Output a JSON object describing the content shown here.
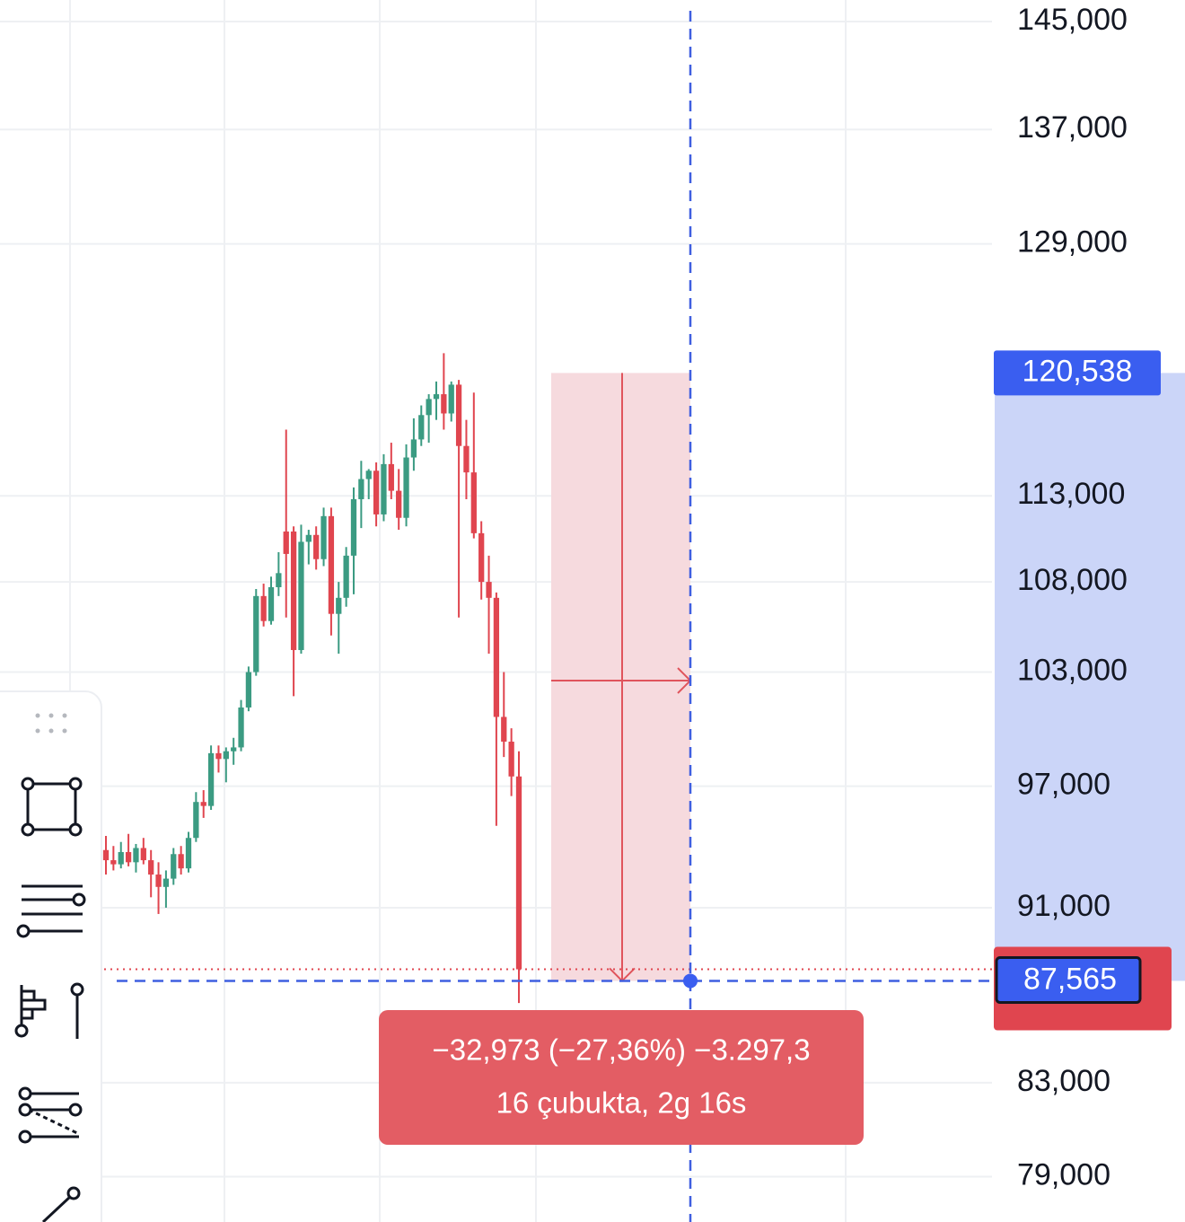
{
  "chart_data": {
    "type": "candlestick",
    "open": [
      93800,
      93300,
      93100,
      93700,
      93200,
      93900,
      93300,
      92600,
      92000,
      92400,
      93600,
      92900,
      94400,
      96200,
      96000,
      98700,
      98400,
      98800,
      99000,
      101100,
      103000,
      107200,
      105800,
      107700,
      110900,
      110900,
      104200,
      110300,
      110700,
      109300,
      111800,
      106200,
      107100,
      109500,
      112800,
      114000,
      114500,
      111900,
      114900,
      113300,
      111700,
      115300,
      116400,
      117900,
      118900,
      119200,
      118000,
      119800,
      116000,
      114400,
      110800,
      108000,
      107100,
      100600,
      99300,
      97500
    ],
    "high": [
      94500,
      94000,
      94200,
      94600,
      94100,
      94400,
      93800,
      93200,
      92800,
      93900,
      94000,
      94700,
      96700,
      96800,
      99100,
      99100,
      99000,
      99500,
      101500,
      103300,
      107600,
      107900,
      108300,
      109700,
      117000,
      111200,
      111300,
      111000,
      111200,
      112300,
      112300,
      108000,
      110000,
      113500,
      115100,
      114600,
      115000,
      115500,
      116200,
      114600,
      116100,
      117700,
      118500,
      119200,
      120000,
      121800,
      120000,
      120100,
      117600,
      119300,
      111500,
      109500,
      107400,
      103000,
      100000,
      98800
    ],
    "low": [
      92600,
      92800,
      92900,
      93000,
      92700,
      93100,
      91500,
      90700,
      91000,
      92100,
      92600,
      92700,
      94200,
      95400,
      95800,
      97700,
      97200,
      98100,
      98800,
      100900,
      102800,
      105500,
      105600,
      107200,
      106000,
      101700,
      104000,
      109000,
      108700,
      108900,
      105000,
      104000,
      106600,
      107300,
      111100,
      112800,
      111200,
      111500,
      112800,
      111000,
      111200,
      114500,
      116000,
      116200,
      117600,
      117000,
      117500,
      106000,
      112800,
      110500,
      107000,
      104000,
      95000,
      98500,
      96500,
      86550
    ],
    "close": [
      93300,
      93100,
      93700,
      93200,
      93900,
      93300,
      92600,
      92000,
      92400,
      93600,
      92900,
      94400,
      96200,
      96000,
      98700,
      98400,
      98800,
      99000,
      101100,
      103000,
      107200,
      105800,
      107700,
      108500,
      109600,
      104200,
      110300,
      110700,
      109300,
      111800,
      106200,
      107100,
      109500,
      112800,
      114000,
      114500,
      111900,
      114900,
      113300,
      111700,
      115300,
      116400,
      117900,
      118900,
      119200,
      118000,
      119800,
      116000,
      114400,
      110800,
      108000,
      107100,
      100600,
      99300,
      97500,
      88100
    ],
    "up_color": "#3b9b82",
    "down_color": "#e0454f",
    "log_scale": true,
    "grid": true,
    "ylim": [
      77140,
      146650
    ],
    "yticks": [
      {
        "value": 145000,
        "label": "145,000"
      },
      {
        "value": 137000,
        "label": "137,000"
      },
      {
        "value": 129000,
        "label": "129,000"
      },
      {
        "value": 113000,
        "label": "113,000"
      },
      {
        "value": 108000,
        "label": "108,000"
      },
      {
        "value": 103000,
        "label": "103,000"
      },
      {
        "value": 97000,
        "label": "97,000"
      },
      {
        "value": 91000,
        "label": "91,000"
      },
      {
        "value": 83000,
        "label": "83,000"
      },
      {
        "value": 79000,
        "label": "79,000"
      }
    ],
    "measure": {
      "start_price": {
        "value": 120538,
        "label": "120,538"
      },
      "end_price": {
        "value": 87565,
        "label": "87,565"
      },
      "change_label": "−32,973 (−27,36%) −3.297,3",
      "duration_label": "16 çubukta, 2g 16s"
    }
  }
}
